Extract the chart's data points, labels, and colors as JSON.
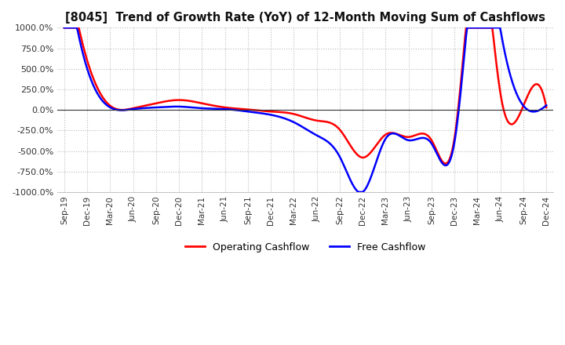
{
  "title": "[8045]  Trend of Growth Rate (YoY) of 12-Month Moving Sum of Cashflows",
  "ylim": [
    -1000,
    1000
  ],
  "yticks": [
    -1000,
    -750,
    -500,
    -250,
    0,
    250,
    500,
    750,
    1000
  ],
  "background_color": "#ffffff",
  "grid_color": "#bbbbbb",
  "legend": [
    "Operating Cashflow",
    "Free Cashflow"
  ],
  "legend_colors": [
    "#ff0000",
    "#0000ff"
  ],
  "x_labels": [
    "Sep-19",
    "Dec-19",
    "Mar-20",
    "Jun-20",
    "Sep-20",
    "Dec-20",
    "Mar-21",
    "Jun-21",
    "Sep-21",
    "Dec-21",
    "Mar-22",
    "Jun-22",
    "Sep-22",
    "Dec-22",
    "Mar-23",
    "Jun-23",
    "Sep-23",
    "Dec-23",
    "Mar-24",
    "Jun-24",
    "Sep-24",
    "Dec-24"
  ],
  "operating_cashflow": [
    2000,
    600,
    50,
    20,
    80,
    120,
    80,
    30,
    5,
    -20,
    -50,
    -130,
    -240,
    -580,
    -300,
    -330,
    -370,
    -340,
    2000,
    200,
    50,
    30
  ],
  "free_cashflow": [
    2000,
    500,
    30,
    10,
    30,
    40,
    20,
    10,
    -20,
    -60,
    -150,
    -310,
    -570,
    -1000,
    -350,
    -370,
    -410,
    -390,
    2000,
    980,
    50,
    55
  ]
}
